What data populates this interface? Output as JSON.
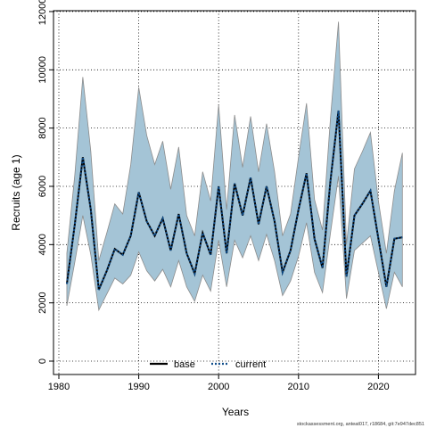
{
  "chart_data": {
    "type": "area",
    "title": "",
    "xlabel": "Years",
    "ylabel": "Recruits (age 1)",
    "xlim": [
      1980,
      2024
    ],
    "ylim": [
      0,
      12000
    ],
    "x_ticks": [
      1980,
      1990,
      2000,
      2010,
      2020
    ],
    "x_tick_labels": [
      "1980",
      "1990",
      "2000",
      "2010",
      "2020"
    ],
    "y_ticks": [
      0,
      2000,
      4000,
      6000,
      8000,
      10000,
      12000
    ],
    "y_tick_labels": [
      "0",
      "2000",
      "4000",
      "6000",
      "8000",
      "10000",
      "12000"
    ],
    "grid": true,
    "legend_position": "bottom-center",
    "x": [
      1981,
      1982,
      1983,
      1984,
      1985,
      1986,
      1987,
      1988,
      1989,
      1990,
      1991,
      1992,
      1993,
      1994,
      1995,
      1996,
      1997,
      1998,
      1999,
      2000,
      2001,
      2002,
      2003,
      2004,
      2005,
      2006,
      2007,
      2008,
      2009,
      2010,
      2011,
      2012,
      2013,
      2014,
      2015,
      2016,
      2017,
      2018,
      2019,
      2020,
      2021,
      2022,
      2023
    ],
    "series": [
      {
        "name": "base",
        "color": "#000000",
        "values": [
          2650,
          4700,
          7000,
          5200,
          2450,
          3100,
          3850,
          3650,
          4300,
          5800,
          4800,
          4300,
          4900,
          3800,
          5050,
          3700,
          3000,
          4400,
          3650,
          6000,
          3700,
          6100,
          5000,
          6300,
          4700,
          6000,
          4800,
          3050,
          3800,
          5200,
          6450,
          4200,
          3200,
          6200,
          8600,
          2900,
          5000,
          5400,
          5850,
          4200,
          2550,
          4200,
          4250
        ]
      },
      {
        "name": "current",
        "color": "#104E8B",
        "values": [
          2650,
          4700,
          7000,
          5200,
          2450,
          3100,
          3850,
          3650,
          4300,
          5800,
          4800,
          4300,
          4900,
          3800,
          5050,
          3700,
          3000,
          4400,
          3650,
          6000,
          3700,
          6100,
          5000,
          6300,
          4700,
          6000,
          4800,
          3050,
          3800,
          5200,
          6450,
          4200,
          3200,
          6200,
          8600,
          2900,
          5000,
          5400,
          5850,
          4200,
          2550,
          4200,
          4250
        ]
      }
    ],
    "interval": {
      "fill_color": "#A4C4D6",
      "border_color": "#8C8C8C",
      "upper": [
        3700,
        6400,
        9750,
        7200,
        3450,
        4400,
        5400,
        5050,
        6750,
        9400,
        7750,
        6750,
        7550,
        5900,
        7350,
        5000,
        4300,
        6500,
        5500,
        8800,
        5200,
        8450,
        6650,
        8400,
        6500,
        8150,
        6500,
        4300,
        5050,
        7000,
        8850,
        5550,
        4500,
        8350,
        11650,
        4000,
        6600,
        7200,
        7850,
        5500,
        3700,
        5850,
        7150
      ],
      "lower": [
        1900,
        3400,
        5000,
        3650,
        1750,
        2300,
        2850,
        2650,
        2950,
        3750,
        3100,
        2750,
        3150,
        2550,
        3450,
        2550,
        2050,
        2950,
        2400,
        4150,
        2550,
        4150,
        3550,
        4300,
        3450,
        4350,
        3450,
        2250,
        2750,
        3600,
        4750,
        3050,
        2350,
        4400,
        6350,
        2150,
        3800,
        4050,
        4300,
        3050,
        1800,
        3050,
        2550
      ]
    }
  },
  "legend": {
    "base_label": "base",
    "current_label": "current"
  },
  "footnote": "stockassessment.org, anteat017, r18684, git:7e947dec851"
}
